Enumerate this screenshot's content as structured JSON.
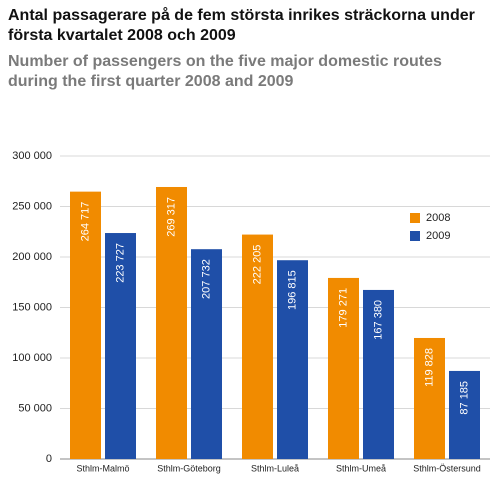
{
  "chart_data": {
    "type": "bar",
    "title": "Antal passagerare på de fem största inrikes sträckorna under första kvartalet 2008 och 2009",
    "subtitle": "Number of passengers on the five major domestic routes during the first quarter 2008 and 2009",
    "categories": [
      "Sthlm-Malmö",
      "Sthlm-Göteborg",
      "Sthlm-Luleå",
      "Sthlm-Umeå",
      "Sthlm-Östersund"
    ],
    "series": [
      {
        "name": "2008",
        "color": "#f18b00",
        "values": [
          264717,
          269317,
          222205,
          179271,
          119828
        ],
        "value_labels": [
          "264 717",
          "269 317",
          "222 205",
          "179 271",
          "119 828"
        ]
      },
      {
        "name": "2009",
        "color": "#1f4fa8",
        "values": [
          223727,
          207732,
          196815,
          167380,
          87185
        ],
        "value_labels": [
          "223 727",
          "207 732",
          "196 815",
          "167 380",
          "87 185"
        ]
      }
    ],
    "ylim": [
      0,
      300000
    ],
    "yticks": [
      0,
      {
        "value": 50000,
        "label": "50 000"
      },
      {
        "value": 100000,
        "label": "100 000"
      },
      {
        "value": 150000,
        "label": "150 000"
      },
      {
        "value": 200000,
        "label": "200 000"
      },
      {
        "value": 250000,
        "label": "250 000"
      },
      {
        "value": 300000,
        "label": "300 000"
      }
    ],
    "grid": true,
    "legend": "right"
  }
}
